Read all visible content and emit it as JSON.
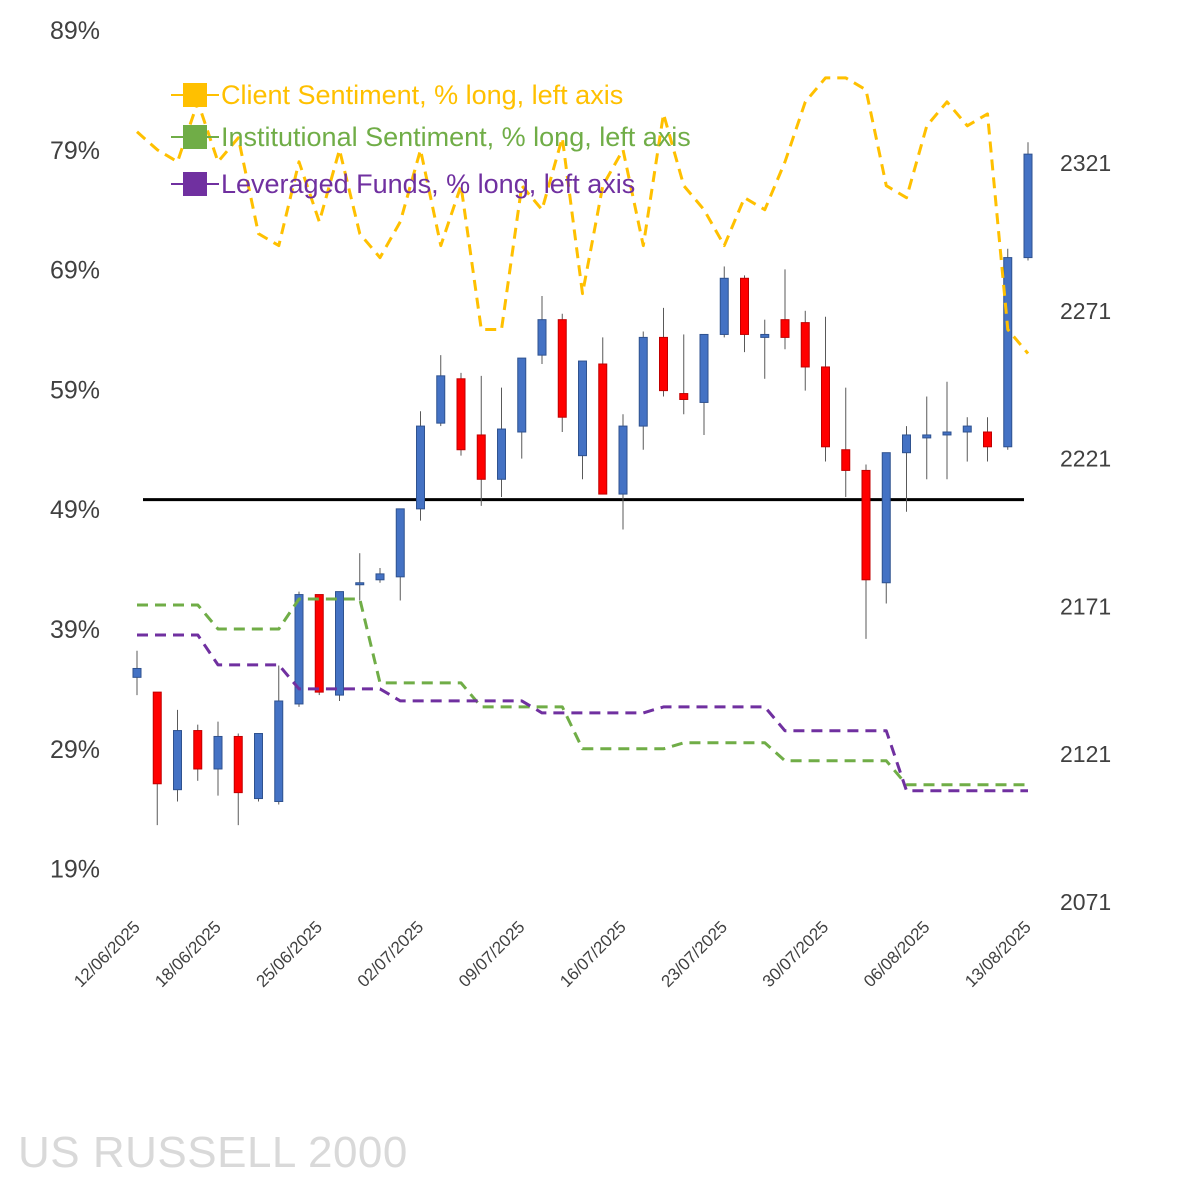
{
  "title": "US RUSSELL 2000",
  "colors": {
    "client": "#ffc000",
    "institutional": "#70ad47",
    "leveraged": "#7030a0",
    "up": "#4472c4",
    "down": "#ff0000",
    "wick": "#595959",
    "reference": "#000000"
  },
  "chart_data": {
    "type": "candlestick-line-combo",
    "title": "US RUSSELL 2000",
    "y_left": {
      "ticks": [
        "89%",
        "79%",
        "69%",
        "59%",
        "49%",
        "39%",
        "29%",
        "19%"
      ],
      "range": [
        19,
        89
      ]
    },
    "y_right": {
      "ticks": [
        "2321",
        "2271",
        "2221",
        "2171",
        "2121",
        "2071"
      ],
      "range": [
        2071,
        2321
      ]
    },
    "x_tick_labels": [
      "12/06/2025",
      "18/06/2025",
      "25/06/2025",
      "02/07/2025",
      "09/07/2025",
      "16/07/2025",
      "23/07/2025",
      "30/07/2025",
      "06/08/2025",
      "13/08/2025"
    ],
    "x_tick_index": [
      0,
      4,
      9,
      14,
      19,
      24,
      29,
      34,
      39,
      44
    ],
    "reference_line_left_pct": 49.8,
    "legend": [
      {
        "label": "Client Sentiment, % long, left axis",
        "color": "#ffc000"
      },
      {
        "label": "Institutional Sentiment, % long, left axis",
        "color": "#70ad47"
      },
      {
        "label": "Leveraged Funds, % long, left axis",
        "color": "#7030a0"
      }
    ],
    "series": [
      {
        "name": "Client Sentiment, % long, left axis",
        "axis": "left",
        "style": "dashed",
        "values": [
          80.5,
          79,
          78,
          83,
          78,
          80,
          72,
          71,
          78,
          73,
          79,
          72,
          70,
          73,
          79,
          71,
          76,
          64,
          64,
          76,
          74,
          80,
          67,
          76,
          79,
          71,
          82,
          76,
          74,
          71,
          75,
          74,
          78,
          83,
          85,
          85,
          84,
          76,
          75,
          81,
          83,
          81,
          82,
          64,
          62
        ]
      },
      {
        "name": "Institutional Sentiment, % long, left axis",
        "axis": "left",
        "style": "dashed",
        "values": [
          41,
          41,
          41,
          41,
          39,
          39,
          39,
          39,
          41.5,
          41.5,
          41.5,
          41.5,
          34.5,
          34.5,
          34.5,
          34.5,
          34.5,
          32.5,
          32.5,
          32.5,
          32.5,
          32.5,
          29,
          29,
          29,
          29,
          29,
          29.5,
          29.5,
          29.5,
          29.5,
          29.5,
          28,
          28,
          28,
          28,
          28,
          28,
          26,
          26,
          26,
          26,
          26,
          26,
          26
        ]
      },
      {
        "name": "Leveraged Funds, % long, left axis",
        "axis": "left",
        "style": "dashed",
        "values": [
          38.5,
          38.5,
          38.5,
          38.5,
          36,
          36,
          36,
          36,
          34,
          34,
          34,
          34,
          34,
          33,
          33,
          33,
          33,
          33,
          33,
          33,
          32,
          32,
          32,
          32,
          32,
          32,
          32.5,
          32.5,
          32.5,
          32.5,
          32.5,
          32.5,
          30.5,
          30.5,
          30.5,
          30.5,
          30.5,
          30.5,
          25.5,
          25.5,
          25.5,
          25.5,
          25.5,
          25.5,
          25.5
        ]
      },
      {
        "name": "",
        "axis": "right",
        "type": "candlestick",
        "ohlc": [
          [
            2147,
            2150,
            2141,
            2156
          ],
          [
            2142,
            2111,
            2097,
            2142
          ],
          [
            2109,
            2129,
            2105,
            2136
          ],
          [
            2129,
            2116,
            2112,
            2131
          ],
          [
            2116,
            2127,
            2107,
            2132
          ],
          [
            2127,
            2108,
            2097,
            2128
          ],
          [
            2106,
            2128,
            2105,
            2128
          ],
          [
            2105,
            2139,
            2104,
            2151
          ],
          [
            2138,
            2175,
            2137,
            2176
          ],
          [
            2175,
            2142,
            2141,
            2175
          ],
          [
            2141,
            2176,
            2139,
            2176
          ],
          [
            2179,
            2179,
            2173,
            2189
          ],
          [
            2180,
            2182,
            2179,
            2184
          ],
          [
            2181,
            2204,
            2173,
            2204
          ],
          [
            2204,
            2232,
            2200,
            2237
          ],
          [
            2233,
            2249,
            2232,
            2256
          ],
          [
            2248,
            2224,
            2222,
            2250
          ],
          [
            2229,
            2214,
            2205,
            2249
          ],
          [
            2214,
            2231,
            2208,
            2245
          ],
          [
            2230,
            2255,
            2221,
            2255
          ],
          [
            2256,
            2268,
            2253,
            2276
          ],
          [
            2268,
            2235,
            2230,
            2270
          ],
          [
            2222,
            2254,
            2214,
            2254
          ],
          [
            2253,
            2209,
            2209,
            2262
          ],
          [
            2209,
            2232,
            2197,
            2236
          ],
          [
            2232,
            2262,
            2224,
            2264
          ],
          [
            2262,
            2244,
            2242,
            2272
          ],
          [
            2243,
            2241,
            2236,
            2263
          ],
          [
            2240,
            2263,
            2229,
            2263
          ],
          [
            2263,
            2282,
            2262,
            2286
          ],
          [
            2282,
            2263,
            2257,
            2283
          ],
          [
            2262,
            2263,
            2248,
            2268
          ],
          [
            2268,
            2262,
            2258,
            2285
          ],
          [
            2267,
            2252,
            2244,
            2271
          ],
          [
            2252,
            2225,
            2220,
            2269
          ],
          [
            2224,
            2217,
            2208,
            2245
          ],
          [
            2217,
            2180,
            2160,
            2219
          ],
          [
            2179,
            2223,
            2172,
            2223
          ],
          [
            2223,
            2229,
            2203,
            2232
          ],
          [
            2228,
            2229,
            2214,
            2242
          ],
          [
            2229,
            2230,
            2214,
            2247
          ],
          [
            2230,
            2232,
            2220,
            2235
          ],
          [
            2230,
            2225,
            2220,
            2235
          ],
          [
            2225,
            2289,
            2224,
            2292
          ],
          [
            2289,
            2324,
            2288,
            2328
          ]
        ]
      }
    ]
  }
}
